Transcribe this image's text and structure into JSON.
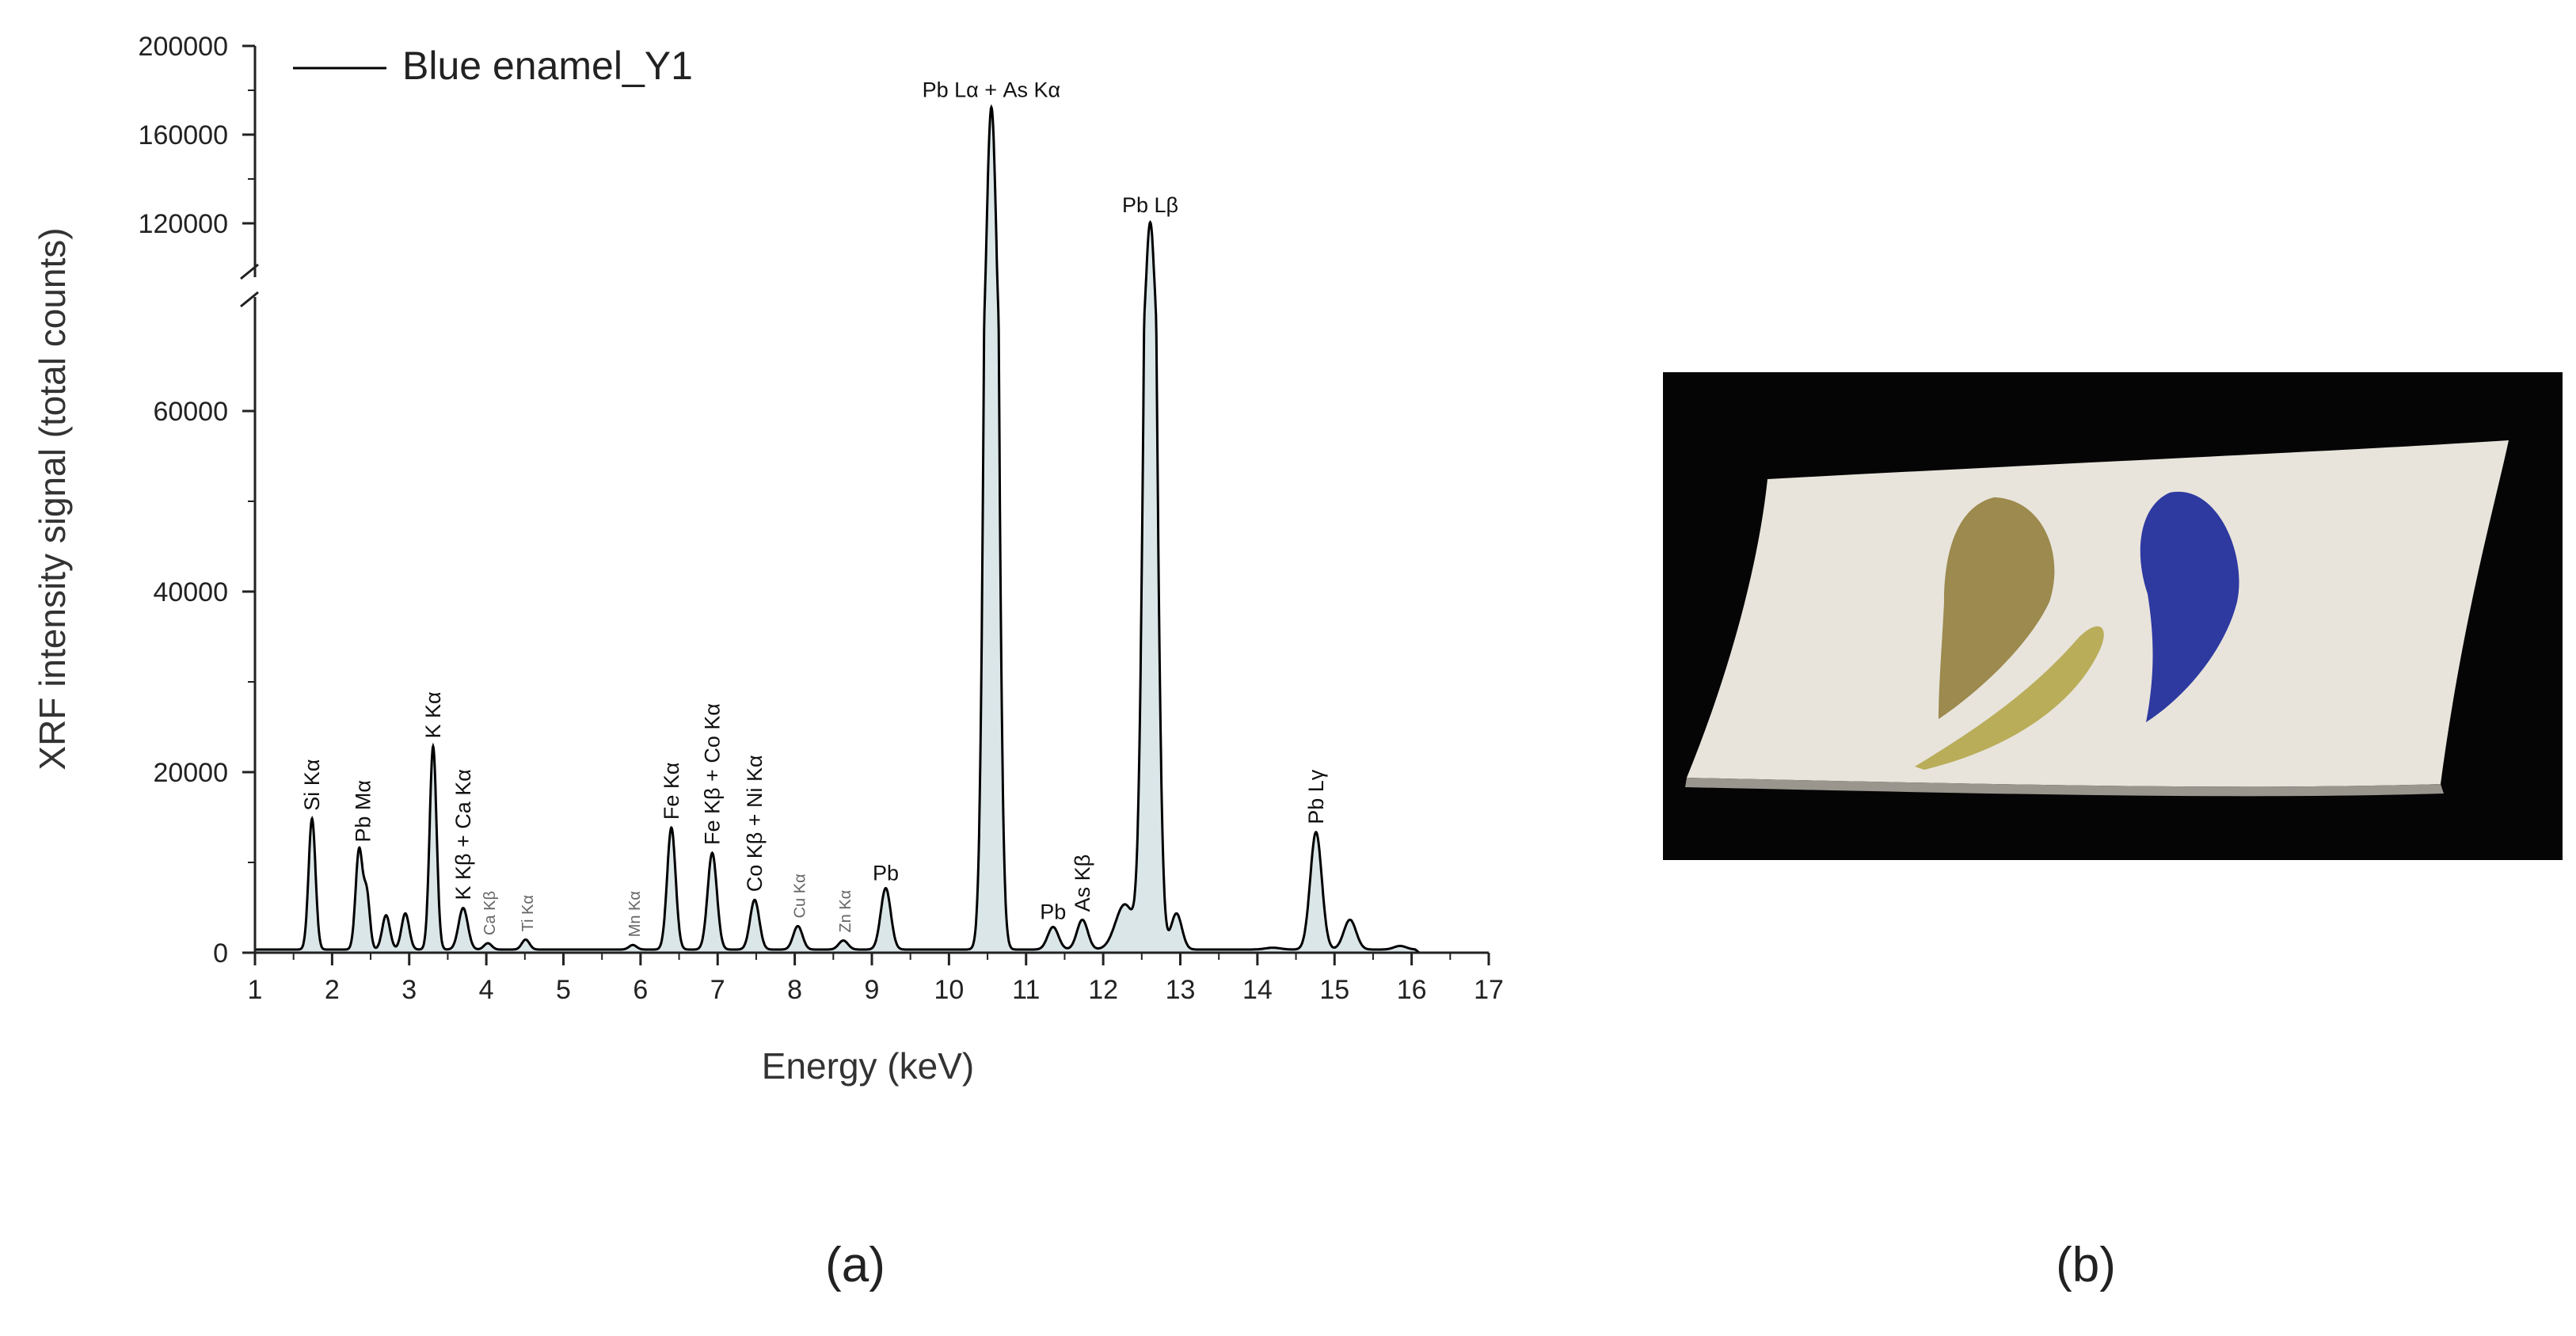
{
  "panel_labels": {
    "a": "(a)",
    "b": "(b)"
  },
  "chart_data": {
    "type": "line",
    "xlabel": "Energy (keV)",
    "ylabel": "XRF intensity signal (total counts)",
    "xlim": [
      1,
      17
    ],
    "y_axis_break": {
      "lower": [
        0,
        70000
      ],
      "upper": [
        100000,
        200000
      ]
    },
    "xticks": [
      "1",
      "2",
      "3",
      "4",
      "5",
      "6",
      "7",
      "8",
      "9",
      "10",
      "11",
      "12",
      "13",
      "14",
      "15",
      "16",
      "17"
    ],
    "yticks_lower": [
      "0",
      "20000",
      "40000",
      "60000"
    ],
    "yticks_upper": [
      "120000",
      "160000",
      "200000"
    ],
    "legend": {
      "position": "top-left",
      "entries": [
        "Blue enamel_Y1"
      ]
    },
    "line_color": "#000000",
    "fill_color": "#dbe6e9",
    "series": [
      {
        "name": "Blue enamel_Y1",
        "peaks": [
          {
            "e": 1.74,
            "counts": 14500,
            "w": 0.045
          },
          {
            "e": 2.35,
            "counts": 11000,
            "w": 0.045
          },
          {
            "e": 2.45,
            "counts": 6000,
            "w": 0.04
          },
          {
            "e": 2.7,
            "counts": 3800,
            "w": 0.05
          },
          {
            "e": 2.95,
            "counts": 4000,
            "w": 0.05
          },
          {
            "e": 3.31,
            "counts": 22500,
            "w": 0.045
          },
          {
            "e": 3.7,
            "counts": 4600,
            "w": 0.06
          },
          {
            "e": 4.02,
            "counts": 700,
            "w": 0.05
          },
          {
            "e": 4.51,
            "counts": 1100,
            "w": 0.05
          },
          {
            "e": 5.9,
            "counts": 500,
            "w": 0.05
          },
          {
            "e": 6.4,
            "counts": 13500,
            "w": 0.055
          },
          {
            "e": 6.93,
            "counts": 10700,
            "w": 0.06
          },
          {
            "e": 7.48,
            "counts": 5500,
            "w": 0.06
          },
          {
            "e": 8.04,
            "counts": 2600,
            "w": 0.06
          },
          {
            "e": 8.63,
            "counts": 1000,
            "w": 0.06
          },
          {
            "e": 9.18,
            "counts": 6800,
            "w": 0.065
          },
          {
            "e": 10.55,
            "counts": 172000,
            "w": 0.07
          },
          {
            "e": 11.35,
            "counts": 2500,
            "w": 0.07
          },
          {
            "e": 11.73,
            "counts": 3300,
            "w": 0.07
          },
          {
            "e": 12.28,
            "counts": 5000,
            "w": 0.12
          },
          {
            "e": 12.61,
            "counts": 120000,
            "w": 0.075
          },
          {
            "e": 12.95,
            "counts": 4000,
            "w": 0.07
          },
          {
            "e": 14.2,
            "counts": 200,
            "w": 0.1
          },
          {
            "e": 14.76,
            "counts": 13000,
            "w": 0.075
          },
          {
            "e": 15.2,
            "counts": 3300,
            "w": 0.08
          },
          {
            "e": 15.85,
            "counts": 400,
            "w": 0.08
          }
        ],
        "background_counts": 350
      }
    ],
    "annotations": [
      {
        "text": "Si Kα",
        "e": 1.74,
        "counts": 14500,
        "rotate": true,
        "small": false
      },
      {
        "text": "Pb Mα",
        "e": 2.4,
        "counts": 11000,
        "rotate": true,
        "small": false
      },
      {
        "text": "K Kα",
        "e": 3.31,
        "counts": 22500,
        "rotate": true,
        "small": false
      },
      {
        "text": "K Kβ + Ca Kα",
        "e": 3.7,
        "counts": 4600,
        "rotate": true,
        "small": false
      },
      {
        "text": "Ca Kβ",
        "e": 4.02,
        "counts": 700,
        "rotate": true,
        "small": true
      },
      {
        "text": "Ti Kα",
        "e": 4.51,
        "counts": 1100,
        "rotate": true,
        "small": true
      },
      {
        "text": "Mn Kα",
        "e": 5.9,
        "counts": 500,
        "rotate": true,
        "small": true
      },
      {
        "text": "Fe Kα",
        "e": 6.4,
        "counts": 13500,
        "rotate": true,
        "small": false
      },
      {
        "text": "Fe Kβ + Co Kα",
        "e": 6.93,
        "counts": 10700,
        "rotate": true,
        "small": false
      },
      {
        "text": "Co Kβ + Ni Kα",
        "e": 7.48,
        "counts": 5500,
        "rotate": true,
        "small": false
      },
      {
        "text": "Cu Kα",
        "e": 8.04,
        "counts": 2600,
        "rotate": true,
        "small": true
      },
      {
        "text": "Zn Kα",
        "e": 8.63,
        "counts": 1000,
        "rotate": true,
        "small": true
      },
      {
        "text": "Pb",
        "e": 9.18,
        "counts": 6800,
        "rotate": false,
        "small": false
      },
      {
        "text": "Pb Lα + As Kα",
        "e": 10.55,
        "counts": 172000,
        "rotate": false,
        "small": false
      },
      {
        "text": "Pb",
        "e": 11.35,
        "counts": 2500,
        "rotate": false,
        "small": false
      },
      {
        "text": "As Kβ",
        "e": 11.73,
        "counts": 3300,
        "rotate": true,
        "small": false
      },
      {
        "text": "Pb Lβ",
        "e": 12.61,
        "counts": 120000,
        "rotate": false,
        "small": false
      },
      {
        "text": "Pb Lγ",
        "e": 14.76,
        "counts": 13000,
        "rotate": true,
        "small": false
      }
    ]
  },
  "photo": {
    "background_color": "#050505",
    "tile_color": "#e8e4dc",
    "leaf_gold_color": "#9c8a4e",
    "leaf_olive_color": "#b9ad5a",
    "leaf_blue_color": "#2e3aa0"
  }
}
